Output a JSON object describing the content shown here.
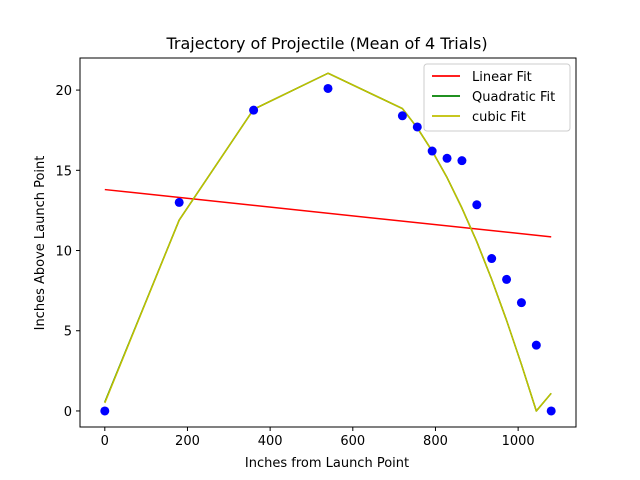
{
  "chart_data": {
    "type": "scatter",
    "title": "Trajectory of Projectile (Mean of 4 Trials)",
    "xlabel": "Inches from Launch Point",
    "ylabel": "Inches Above Launch Point",
    "xlim": [
      -60,
      1140
    ],
    "ylim": [
      -1,
      22
    ],
    "xticks": [
      0,
      200,
      400,
      600,
      800,
      1000
    ],
    "yticks": [
      0,
      5,
      10,
      15,
      20
    ],
    "grid": false,
    "legend_position": "top-right",
    "points": {
      "color": "#0000ff",
      "x": [
        0,
        180,
        360,
        540,
        720,
        756,
        792,
        828,
        864,
        900,
        936,
        972,
        1008,
        1044,
        1080
      ],
      "y": [
        0,
        13.0,
        18.75,
        20.1,
        18.4,
        17.7,
        16.2,
        15.75,
        15.6,
        12.85,
        9.5,
        8.2,
        6.75,
        4.1,
        0
      ]
    },
    "series": [
      {
        "name": "Linear Fit",
        "color": "#ff0000",
        "x": [
          0,
          1080
        ],
        "y": [
          13.8,
          10.85
        ]
      },
      {
        "name": "Quadratic Fit",
        "color": "#008000",
        "x": [
          0,
          180,
          360,
          540,
          720,
          756,
          792,
          828,
          864,
          900,
          936,
          972,
          1008,
          1044,
          1080
        ],
        "y": [
          0.55,
          11.9,
          18.8,
          21.05,
          18.85,
          17.65,
          16.2,
          14.55,
          12.65,
          10.55,
          8.2,
          5.65,
          2.9,
          0.0,
          1.1
        ]
      },
      {
        "name": "cubic Fit",
        "color": "#bfbf00",
        "x": [
          0,
          180,
          360,
          540,
          720,
          756,
          792,
          828,
          864,
          900,
          936,
          972,
          1008,
          1044,
          1080
        ],
        "y": [
          0.5,
          11.9,
          18.8,
          21.05,
          18.85,
          17.65,
          16.2,
          14.55,
          12.65,
          10.55,
          8.2,
          5.65,
          2.9,
          0.0,
          1.1
        ]
      }
    ]
  }
}
